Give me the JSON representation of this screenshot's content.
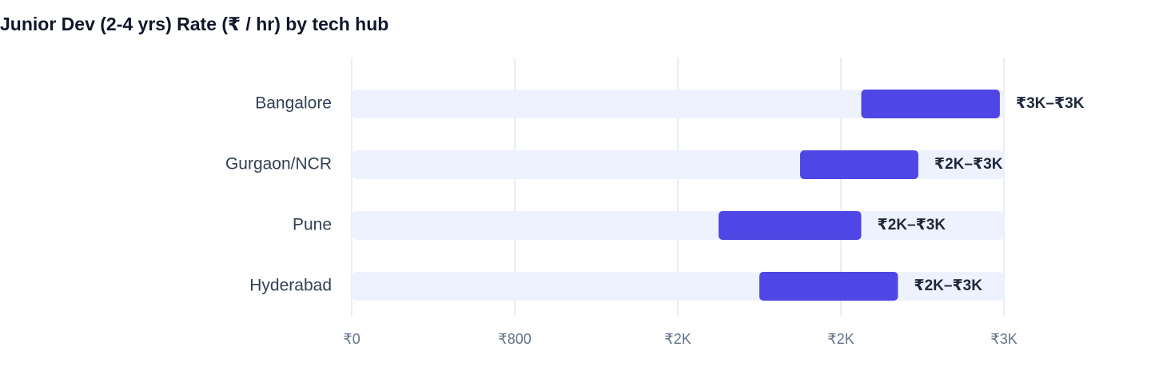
{
  "chart_data": {
    "type": "range_bar",
    "title": "Junior Dev (2-4 yrs) Rate (₹ / hr) by tech hub",
    "categories": [
      "Bangalore",
      "Gurgaon/NCR",
      "Pune",
      "Hyderabad"
    ],
    "low": [
      2500,
      2200,
      1800,
      2000
    ],
    "high": [
      3180,
      2780,
      2500,
      2680
    ],
    "value_labels": [
      "₹3K–₹3K",
      "₹2K–₹3K",
      "₹2K–₹3K",
      "₹2K–₹3K"
    ],
    "color": "#4f46e5",
    "xlim": [
      0,
      3200
    ],
    "xticks": [
      {
        "value": 0,
        "label": "₹0"
      },
      {
        "value": 800,
        "label": "₹800"
      },
      {
        "value": 1600,
        "label": "₹2K"
      },
      {
        "value": 2400,
        "label": "₹2K"
      },
      {
        "value": 3200,
        "label": "₹3K"
      }
    ],
    "grid": true
  }
}
